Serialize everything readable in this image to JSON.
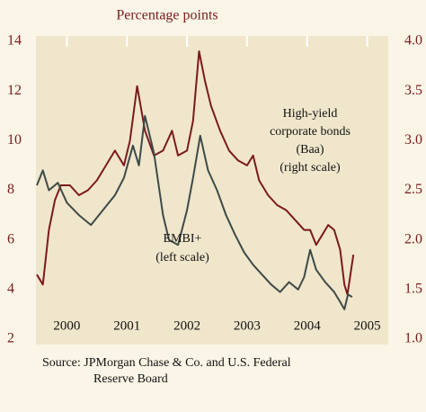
{
  "chart_data": {
    "type": "line",
    "y_axis_label": "Percentage points",
    "xlim": [
      2000,
      2005.85
    ],
    "xticks": [
      {
        "value": 2000.5,
        "label": "2000"
      },
      {
        "value": 2001.5,
        "label": "2001"
      },
      {
        "value": 2002.5,
        "label": "2002"
      },
      {
        "value": 2003.5,
        "label": "2003"
      },
      {
        "value": 2004.5,
        "label": "2004"
      },
      {
        "value": 2005.5,
        "label": "2005"
      }
    ],
    "ylim": [
      2,
      14
    ],
    "yticks": [
      2,
      4,
      6,
      8,
      10,
      12,
      14
    ],
    "y2lim": [
      1,
      4
    ],
    "y2ticks": [
      {
        "value": 1,
        "label": "1.0"
      },
      {
        "value": 1.5,
        "label": "1.5"
      },
      {
        "value": 2,
        "label": "2.0"
      },
      {
        "value": 2.5,
        "label": "2.5"
      },
      {
        "value": 3,
        "label": "3.0"
      },
      {
        "value": 3.5,
        "label": "3.5"
      },
      {
        "value": 4,
        "label": "4.0"
      }
    ],
    "grid": false,
    "series": [
      {
        "name": "High-yield corporate bonds (Baa)",
        "axis": "y2",
        "color": "#7a1a1e",
        "x": [
          2000.0,
          2000.1,
          2000.2,
          2000.3,
          2000.4,
          2000.55,
          2000.7,
          2000.85,
          2001.0,
          2001.15,
          2001.3,
          2001.45,
          2001.55,
          2001.67,
          2001.8,
          2001.95,
          2002.1,
          2002.25,
          2002.35,
          2002.5,
          2002.6,
          2002.7,
          2002.8,
          2002.9,
          2003.05,
          2003.2,
          2003.35,
          2003.5,
          2003.6,
          2003.7,
          2003.85,
          2004.0,
          2004.15,
          2004.3,
          2004.45,
          2004.55,
          2004.65,
          2004.75,
          2004.85,
          2004.95,
          2005.05,
          2005.12,
          2005.17,
          2005.22,
          2005.27
        ],
        "values": [
          1.65,
          1.55,
          2.1,
          2.4,
          2.55,
          2.55,
          2.45,
          2.5,
          2.6,
          2.75,
          2.9,
          2.75,
          3.0,
          3.55,
          3.1,
          2.85,
          2.9,
          3.1,
          2.85,
          2.9,
          3.2,
          3.9,
          3.6,
          3.35,
          3.1,
          2.9,
          2.8,
          2.75,
          2.85,
          2.6,
          2.45,
          2.35,
          2.3,
          2.2,
          2.1,
          2.1,
          1.95,
          2.05,
          2.15,
          2.1,
          1.9,
          1.55,
          1.45,
          1.65,
          1.85
        ]
      },
      {
        "name": "EMBI+",
        "axis": "y",
        "color": "#3e4a48",
        "x": [
          2000.0,
          2000.1,
          2000.2,
          2000.35,
          2000.5,
          2000.7,
          2000.9,
          2001.1,
          2001.3,
          2001.45,
          2001.6,
          2001.7,
          2001.8,
          2001.95,
          2002.1,
          2002.2,
          2002.35,
          2002.5,
          2002.6,
          2002.72,
          2002.85,
          2003.0,
          2003.15,
          2003.3,
          2003.45,
          2003.6,
          2003.75,
          2003.9,
          2004.05,
          2004.2,
          2004.35,
          2004.45,
          2004.55,
          2004.65,
          2004.8,
          2004.95,
          2005.05,
          2005.12,
          2005.18,
          2005.25
        ],
        "values": [
          8.2,
          8.8,
          8.0,
          8.3,
          7.5,
          7.0,
          6.6,
          7.2,
          7.8,
          8.5,
          9.8,
          9.0,
          11.0,
          9.5,
          7.0,
          6.0,
          5.8,
          7.2,
          8.5,
          10.2,
          8.8,
          8.0,
          7.0,
          6.2,
          5.5,
          5.0,
          4.6,
          4.2,
          3.9,
          4.3,
          4.0,
          4.5,
          5.6,
          4.8,
          4.3,
          3.9,
          3.5,
          3.2,
          3.8,
          3.7
        ]
      }
    ],
    "annotations": [
      {
        "lines": [
          "High-yield",
          "corporate bonds",
          "(Baa)",
          "(right scale)"
        ]
      },
      {
        "lines": [
          "EMBI+",
          "(left scale)"
        ]
      }
    ],
    "source": [
      "Source: JPMorgan Chase & Co. and U.S. Federal",
      "Reserve Board"
    ]
  }
}
